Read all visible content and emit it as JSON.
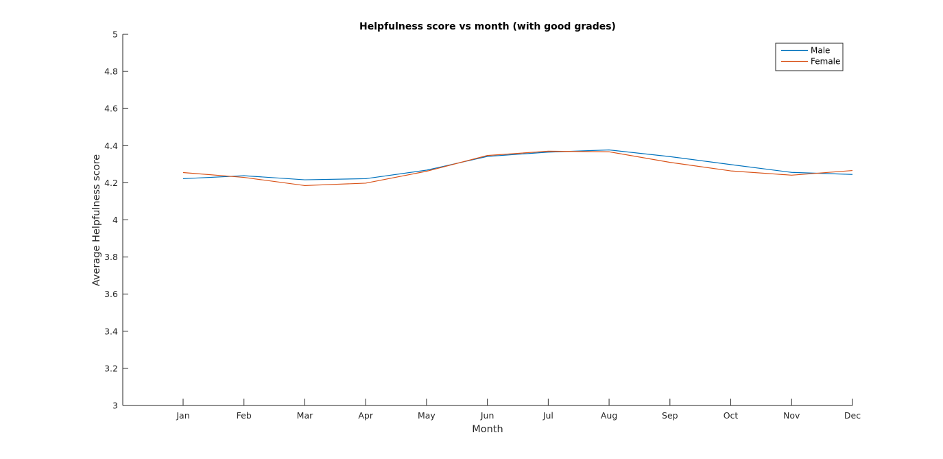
{
  "chart_data": {
    "type": "line",
    "title": "Helpfulness score vs month (with good grades)",
    "xlabel": "Month",
    "ylabel": "Average Helpfulness score",
    "categories": [
      "Jan",
      "Feb",
      "Mar",
      "Apr",
      "May",
      "Jun",
      "Jul",
      "Aug",
      "Sep",
      "Oct",
      "Nov",
      "Dec"
    ],
    "ylim": [
      3,
      5
    ],
    "yticks": [
      "3",
      "3.2",
      "3.4",
      "3.6",
      "3.8",
      "4",
      "4.2",
      "4.4",
      "4.6",
      "4.8",
      "5"
    ],
    "grid": false,
    "legend_position": "top-right",
    "series": [
      {
        "name": "Male",
        "color": "#0072BD",
        "values": [
          4.222,
          4.238,
          4.216,
          4.222,
          4.268,
          4.342,
          4.365,
          4.377,
          4.341,
          4.298,
          4.256,
          4.245
        ]
      },
      {
        "name": "Female",
        "color": "#D95319",
        "values": [
          4.255,
          4.229,
          4.185,
          4.198,
          4.262,
          4.347,
          4.37,
          4.367,
          4.31,
          4.264,
          4.241,
          4.266
        ]
      }
    ]
  }
}
